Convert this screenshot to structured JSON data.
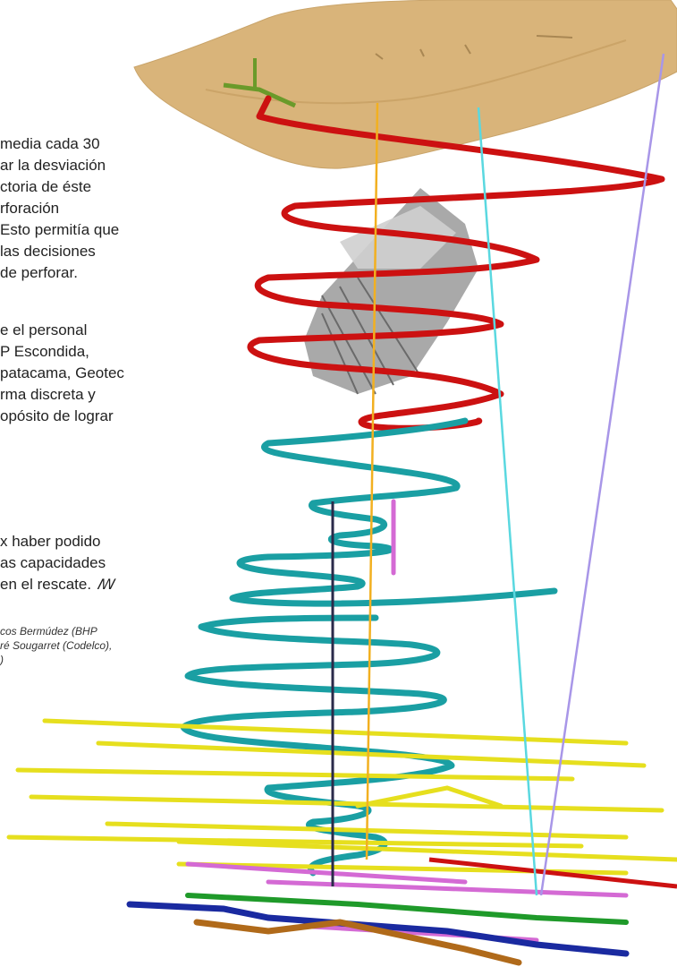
{
  "article": {
    "paragraphs": [
      {
        "lines": [
          "media cada 30",
          "ar la desviación",
          "ctoria de éste",
          "rforación",
          "Esto permitía que",
          "las decisiones",
          "de perforar."
        ]
      },
      {
        "lines": [
          "e el personal",
          "P Escondida,",
          "patacama, Geotec",
          "rma discreta y",
          "opósito de lograr"
        ]
      },
      {
        "lines": [
          "x haber podido",
          "as capacidades",
          "en el rescate."
        ],
        "end_mark": "ꟿ"
      }
    ],
    "credit": [
      "cos Bermúdez (BHP",
      "ré Sougarret (Codelco),",
      ")"
    ]
  },
  "figure": {
    "colors": {
      "surface": "#d9b47a",
      "red_ramp": "#cc1111",
      "teal_ramp": "#1a9fa3",
      "yellow_levels": "#e6df1e",
      "magenta_levels": "#d46ad4",
      "green_level": "#1f9a2a",
      "blue_level": "#1a2aa0",
      "brown_level": "#b06a1a",
      "orange_borehole": "#f2b020",
      "cyan_borehole": "#5ad8e0",
      "violet_borehole": "#a896e8",
      "dark_shaft": "#2a2a4a",
      "fan_grey": "#8a8a8a"
    }
  }
}
